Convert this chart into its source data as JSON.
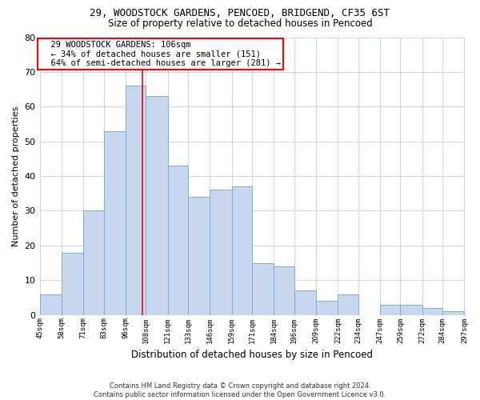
{
  "title": "29, WOODSTOCK GARDENS, PENCOED, BRIDGEND, CF35 6ST",
  "subtitle": "Size of property relative to detached houses in Pencoed",
  "xlabel": "Distribution of detached houses by size in Pencoed",
  "ylabel": "Number of detached properties",
  "footer_line1": "Contains HM Land Registry data © Crown copyright and database right 2024.",
  "footer_line2": "Contains public sector information licensed under the Open Government Licence v3.0.",
  "annotation_line1": "29 WOODSTOCK GARDENS: 106sqm",
  "annotation_line2": "← 34% of detached houses are smaller (151)",
  "annotation_line3": "64% of semi-detached houses are larger (281) →",
  "property_size": 106,
  "bar_color": "#c8d9ef",
  "bar_edge_color": "#7aadd4",
  "vline_color": "red",
  "annotation_box_edge_color": "red",
  "grid_color": "#c8d4e8",
  "background_color": "#ffffff",
  "bins": [
    45,
    58,
    71,
    83,
    96,
    108,
    121,
    133,
    146,
    159,
    171,
    184,
    196,
    209,
    222,
    234,
    247,
    259,
    272,
    284,
    297
  ],
  "counts": [
    6,
    18,
    30,
    53,
    66,
    63,
    43,
    34,
    36,
    37,
    15,
    14,
    7,
    4,
    6,
    0,
    3,
    3,
    2,
    1
  ],
  "ylim": [
    0,
    80
  ],
  "yticks": [
    0,
    10,
    20,
    30,
    40,
    50,
    60,
    70,
    80
  ]
}
